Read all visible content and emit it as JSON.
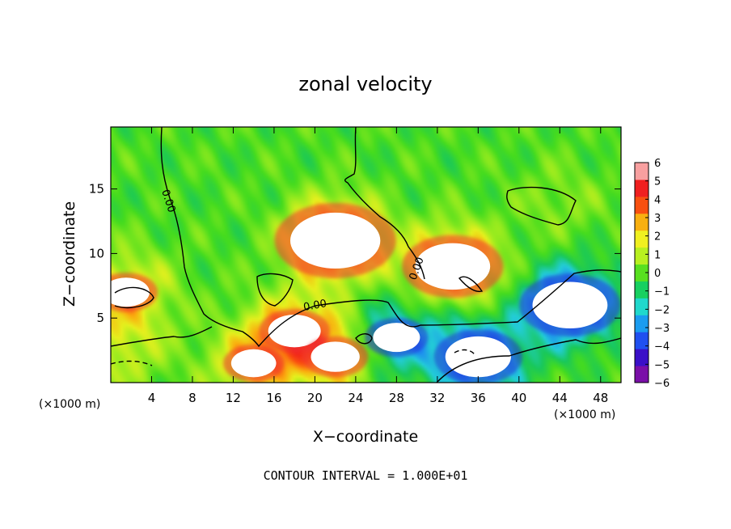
{
  "chart_data": {
    "type": "heatmap",
    "title": "zonal velocity",
    "xlabel": "X−coordinate",
    "ylabel": "Z−coordinate",
    "x_unit_left": "(×1000 m)",
    "x_unit_right": "(×1000 m)",
    "footer": "CONTOUR INTERVAL = 1.000E+01",
    "xlim": [
      0,
      50
    ],
    "ylim": [
      0,
      19.8
    ],
    "x_ticks": [
      4,
      8,
      12,
      16,
      20,
      24,
      28,
      32,
      36,
      40,
      44,
      48
    ],
    "x_tick_labels": [
      "4",
      "8",
      "12",
      "16",
      "20",
      "24",
      "28",
      "32",
      "36",
      "40",
      "44",
      "48"
    ],
    "y_ticks": [
      5,
      10,
      15
    ],
    "y_tick_labels": [
      "5",
      "10",
      "15"
    ],
    "colorbar": {
      "range": [
        -6,
        6
      ],
      "ticks": [
        6,
        5,
        4,
        3,
        2,
        1,
        0,
        -1,
        -2,
        -3,
        -4,
        -5,
        -6
      ],
      "tick_labels": [
        "6",
        "5",
        "4",
        "3",
        "2",
        "1",
        "0",
        "−1",
        "−2",
        "−3",
        "−4",
        "−5",
        "−6"
      ],
      "colors": [
        "#7a0fa8",
        "#3a10c8",
        "#2050f0",
        "#1a9cf0",
        "#20d8cc",
        "#18d060",
        "#58e020",
        "#b8f020",
        "#f0f020",
        "#f8b010",
        "#f85010",
        "#f02020",
        "#f8a0a0"
      ]
    },
    "contour_labels": [
      "0.00",
      "0.00",
      "0.00"
    ],
    "features": [
      {
        "kind": "jet_core",
        "x": 22.0,
        "z": 11.0,
        "value": 4.8
      },
      {
        "kind": "jet_core",
        "x": 33.5,
        "z": 9.0,
        "value": 4.0
      },
      {
        "kind": "jet_core",
        "x": 1.5,
        "z": 7.0,
        "value": 2.5
      },
      {
        "kind": "jet_core",
        "x": 18.0,
        "z": 4.0,
        "value": 2.8
      },
      {
        "kind": "jet_core",
        "x": 22.0,
        "z": 2.0,
        "value": 2.6
      },
      {
        "kind": "jet_core",
        "x": 14.0,
        "z": 1.5,
        "value": 2.4
      },
      {
        "kind": "jet_core",
        "x": 45.0,
        "z": 6.0,
        "value": -4.0
      },
      {
        "kind": "jet_core",
        "x": 36.0,
        "z": 2.0,
        "value": -3.5
      },
      {
        "kind": "jet_core",
        "x": 28.0,
        "z": 3.5,
        "value": -2.5
      },
      {
        "kind": "jet_core",
        "x": 44.0,
        "z": 14.0,
        "value": 0.8
      },
      {
        "kind": "jet_core",
        "x": 1.0,
        "z": 2.5,
        "value": 1.5
      }
    ]
  }
}
